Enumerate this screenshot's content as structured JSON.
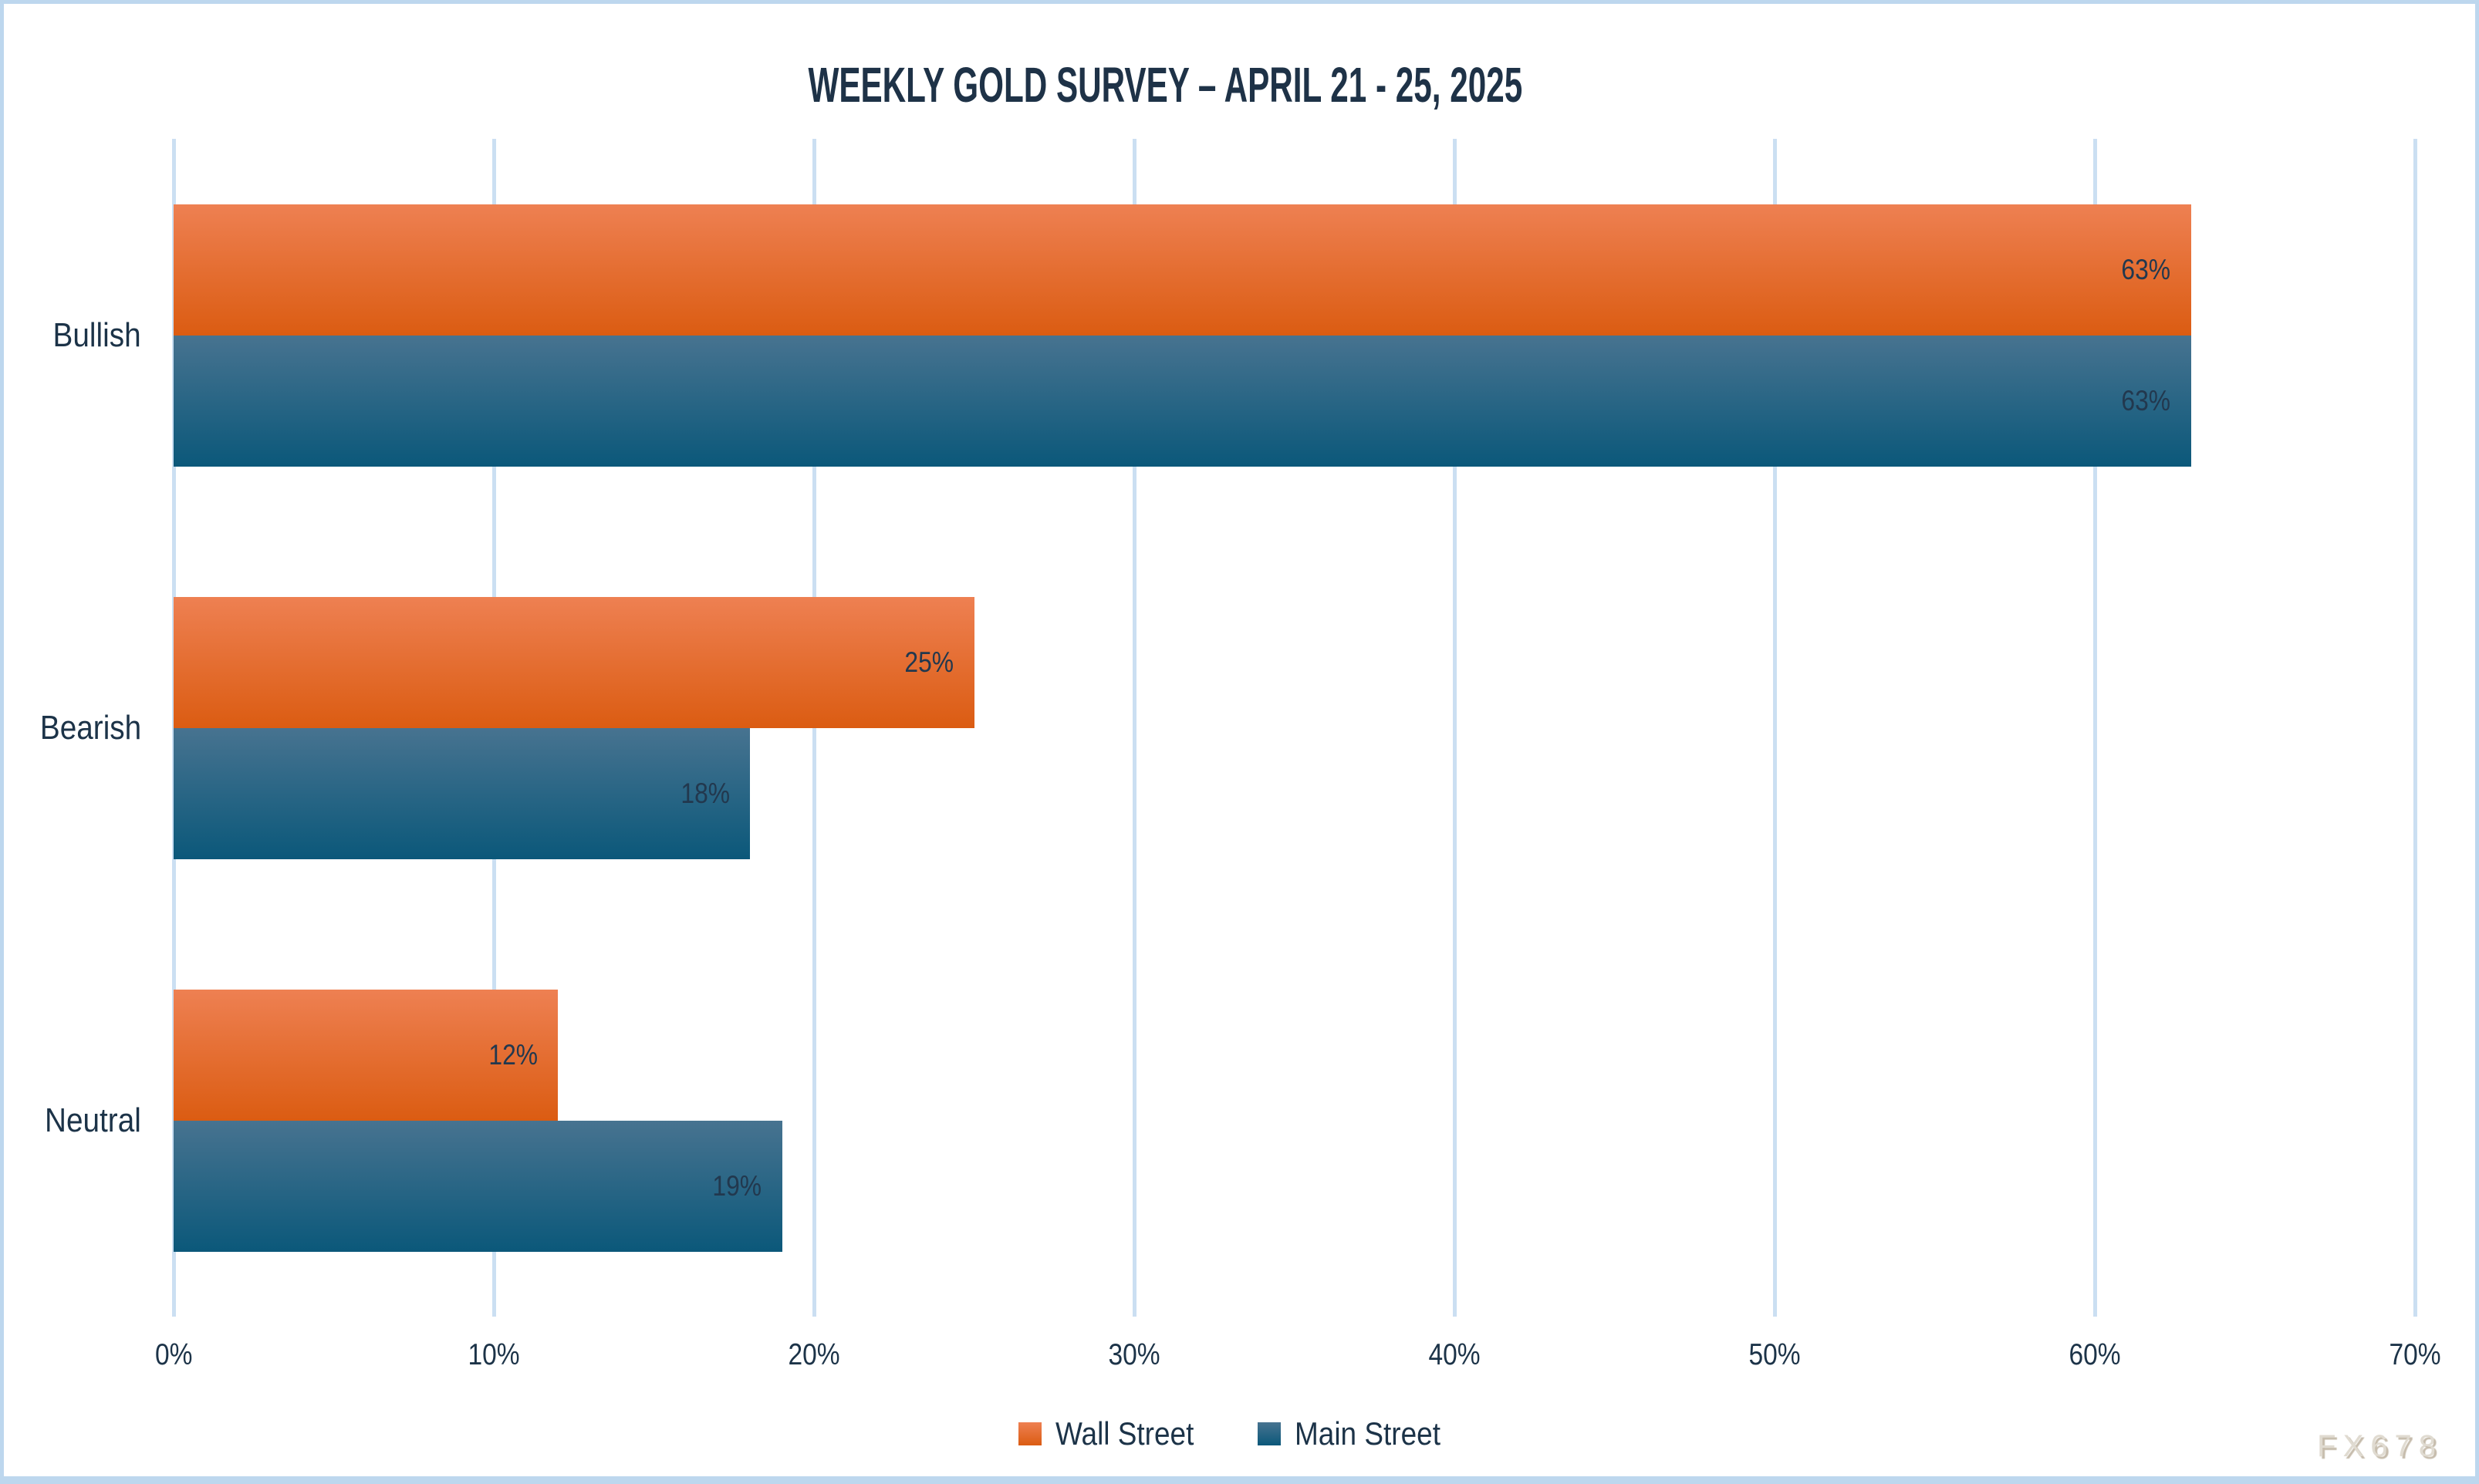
{
  "title": "WEEKLY GOLD SURVEY – APRIL 21 - 25, 2025",
  "watermark": "FX678",
  "legend": [
    {
      "label": "Wall Street",
      "series_key": "wall_street"
    },
    {
      "label": "Main Street",
      "series_key": "main_street"
    }
  ],
  "x_axis": {
    "min": 0,
    "max": 70,
    "step": 10,
    "tick_labels": [
      "0%",
      "10%",
      "20%",
      "30%",
      "40%",
      "50%",
      "60%",
      "70%"
    ]
  },
  "chart_data": {
    "type": "bar",
    "orientation": "horizontal",
    "title": "WEEKLY GOLD SURVEY – APRIL 21 - 25, 2025",
    "categories": [
      "Bullish",
      "Bearish",
      "Neutral"
    ],
    "series": [
      {
        "name": "Wall Street",
        "key": "wall_street",
        "values": [
          63,
          25,
          12
        ],
        "data_labels": [
          "63%",
          "25%",
          "12%"
        ]
      },
      {
        "name": "Main Street",
        "key": "main_street",
        "values": [
          63,
          18,
          19
        ],
        "data_labels": [
          "63%",
          "18%",
          "19%"
        ]
      }
    ],
    "xlim": [
      0,
      70
    ],
    "x_tick_labels": [
      "0%",
      "10%",
      "20%",
      "30%",
      "40%",
      "50%",
      "60%",
      "70%"
    ],
    "grid": "vertical",
    "legend_position": "bottom",
    "data_label_position": "inside-end"
  },
  "colors": {
    "wall_street_top": "#EE8052",
    "wall_street_bottom": "#DB5C12",
    "main_street_top": "#477390",
    "main_street_bottom": "#0B587A",
    "text_dark": "#1C3348",
    "data_label": "#22384E",
    "gridline": "#CBDFF2",
    "border": "#BDD7EE",
    "watermark": "#E0DBD1"
  }
}
